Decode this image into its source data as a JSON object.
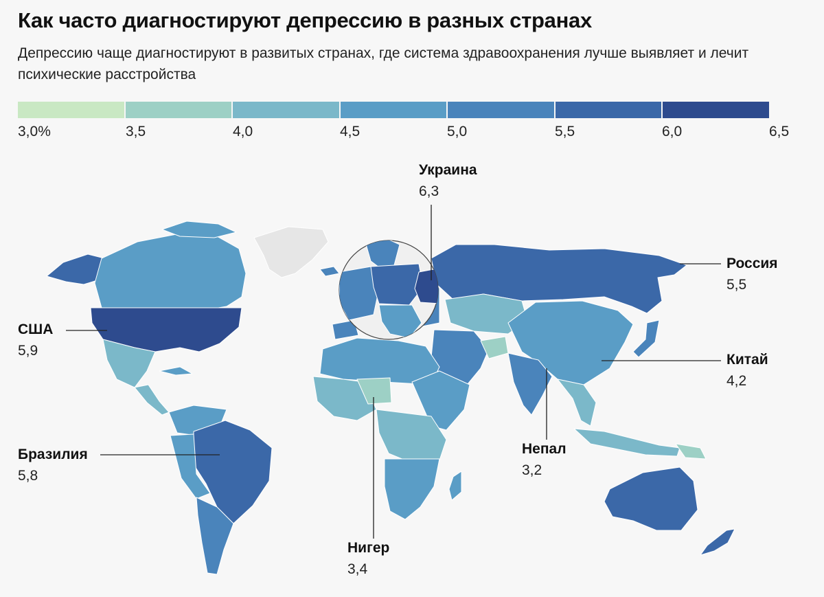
{
  "title": "Как часто диагностируют депрессию в разных странах",
  "subtitle": "Депрессию чаще диагностируют в развитых странах, где система здравоохранения лучше выявляет и лечит психические расстройства",
  "legend": {
    "ticks": [
      "3,0%",
      "3,5",
      "4,0",
      "4,5",
      "5,0",
      "5,5",
      "6,0",
      "6,5"
    ],
    "colors": [
      "#c9e8c3",
      "#9dd0c5",
      "#7bb8c9",
      "#5a9dc6",
      "#4a84bb",
      "#3b68a8",
      "#2e4b8e"
    ]
  },
  "colors": {
    "no_data": "#e6e6e6",
    "border": "#ffffff",
    "background": "#f7f7f7"
  },
  "callouts": [
    {
      "key": "usa",
      "name": "США",
      "value": "5,9"
    },
    {
      "key": "brazil",
      "name": "Бразилия",
      "value": "5,8"
    },
    {
      "key": "ukraine",
      "name": "Украина",
      "value": "6,3"
    },
    {
      "key": "russia",
      "name": "Россия",
      "value": "5,5"
    },
    {
      "key": "china",
      "name": "Китай",
      "value": "4,2"
    },
    {
      "key": "nepal",
      "name": "Непал",
      "value": "3,2"
    },
    {
      "key": "niger",
      "name": "Нигер",
      "value": "3,4"
    }
  ]
}
